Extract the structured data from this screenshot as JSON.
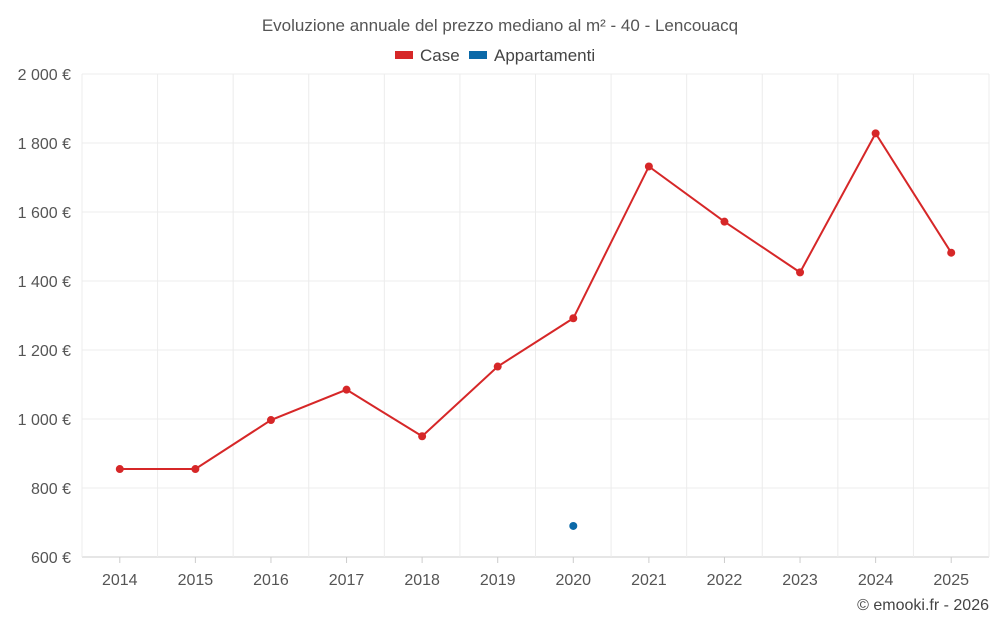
{
  "chart_data": {
    "type": "line",
    "title": "Evoluzione annuale del prezzo mediano al m² - 40 - Lencouacq",
    "categories": [
      "2014",
      "2015",
      "2016",
      "2017",
      "2018",
      "2019",
      "2020",
      "2021",
      "2022",
      "2023",
      "2024",
      "2025"
    ],
    "ylim": [
      600,
      2000
    ],
    "yticks": [
      600,
      800,
      1000,
      1200,
      1400,
      1600,
      1800,
      2000
    ],
    "ytick_labels": [
      "600 €",
      "800 €",
      "1 000 €",
      "1 200 €",
      "1 400 €",
      "1 600 €",
      "1 800 €",
      "2 000 €"
    ],
    "series": [
      {
        "name": "Case",
        "color": "#d62728",
        "values": [
          855,
          855,
          997,
          1085,
          950,
          1152,
          1292,
          1732,
          1572,
          1425,
          1828,
          1482
        ]
      },
      {
        "name": "Appartamenti",
        "color": "#0b69a8",
        "values": [
          null,
          null,
          null,
          null,
          null,
          null,
          690,
          null,
          null,
          null,
          null,
          null
        ]
      }
    ],
    "credit": "© emooki.fr - 2026"
  }
}
